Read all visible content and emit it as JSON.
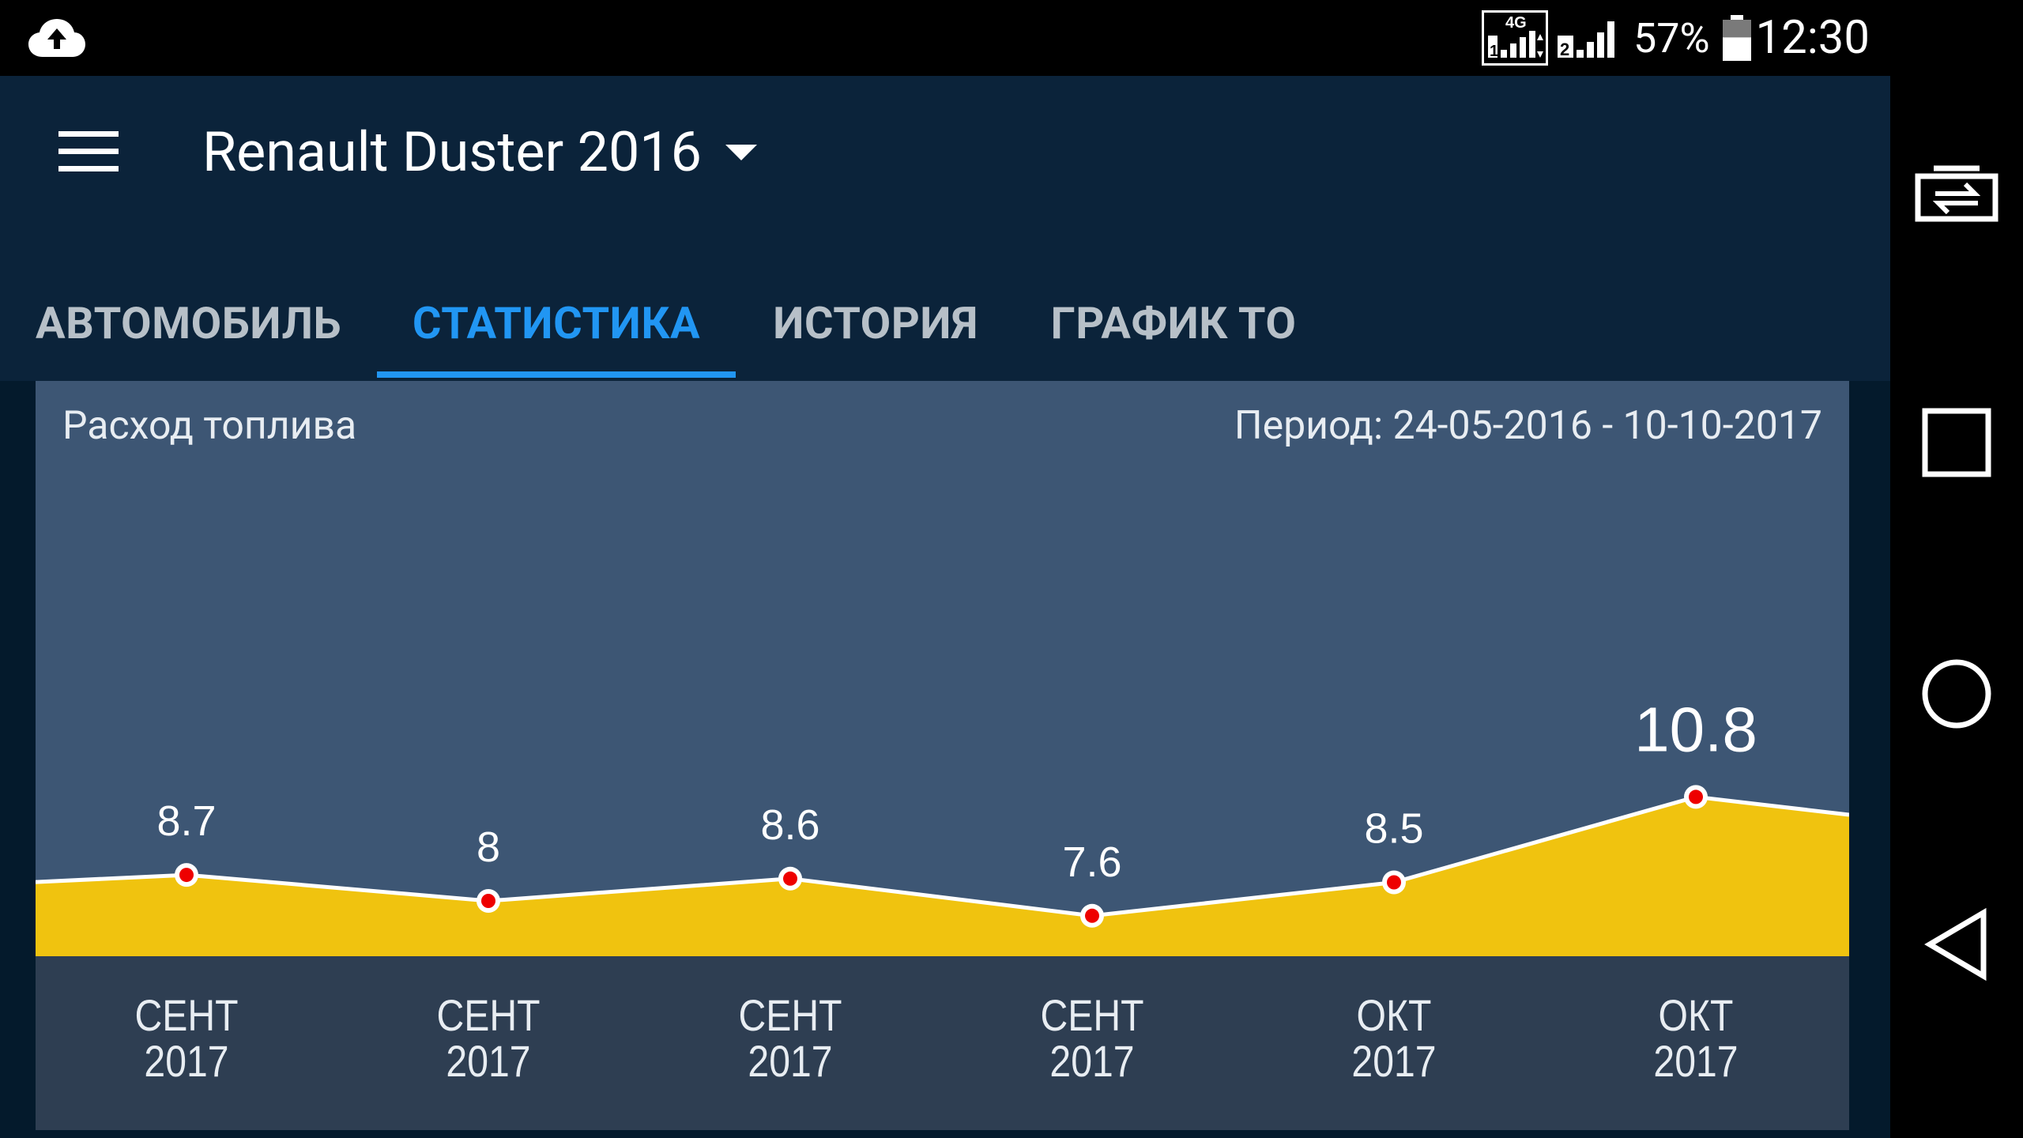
{
  "status_bar": {
    "network_type": "4G",
    "sim1_label": "1",
    "sim2_label": "2",
    "battery_percent": "57%",
    "battery_level": 0.57,
    "time": "12:30"
  },
  "app_bar": {
    "car_title": "Renault Duster 2016"
  },
  "tabs": [
    {
      "label": "АВТОМОБИЛЬ",
      "active": false
    },
    {
      "label": "СТАТИСТИКА",
      "active": true
    },
    {
      "label": "ИСТОРИЯ",
      "active": false
    },
    {
      "label": "ГРАФИК ТО",
      "active": false
    }
  ],
  "card": {
    "title": "Расход топлива",
    "period": "Период: 24-05-2016 - 10-10-2017"
  },
  "chart_data": {
    "type": "area",
    "title": "Расход топлива",
    "categories": [
      {
        "month": "СЕНТ",
        "year": "2017"
      },
      {
        "month": "СЕНТ",
        "year": "2017"
      },
      {
        "month": "СЕНТ",
        "year": "2017"
      },
      {
        "month": "СЕНТ",
        "year": "2017"
      },
      {
        "month": "ОКТ",
        "year": "2017"
      },
      {
        "month": "ОКТ",
        "year": "2017"
      }
    ],
    "values": [
      8.7,
      8,
      8.6,
      7.6,
      8.5,
      10.8
    ],
    "value_labels": [
      "8.7",
      "8",
      "8.6",
      "7.6",
      "8.5",
      "10.8"
    ],
    "highlighted_index": 5,
    "area_color": "#f0c30f",
    "line_color": "#ffffff",
    "point_color": "#ee0000",
    "background_color": "#3d5674",
    "axis_band_color": "#2e3e52",
    "grid": false
  },
  "colors": {
    "status_bar": "#000000",
    "app_bar": "#0b233a",
    "accent": "#2196f3",
    "tab_inactive": "#b7c0c8"
  },
  "nav_bar": {
    "buttons": [
      "switch-sim-icon",
      "recents-icon",
      "home-icon",
      "back-icon"
    ]
  }
}
